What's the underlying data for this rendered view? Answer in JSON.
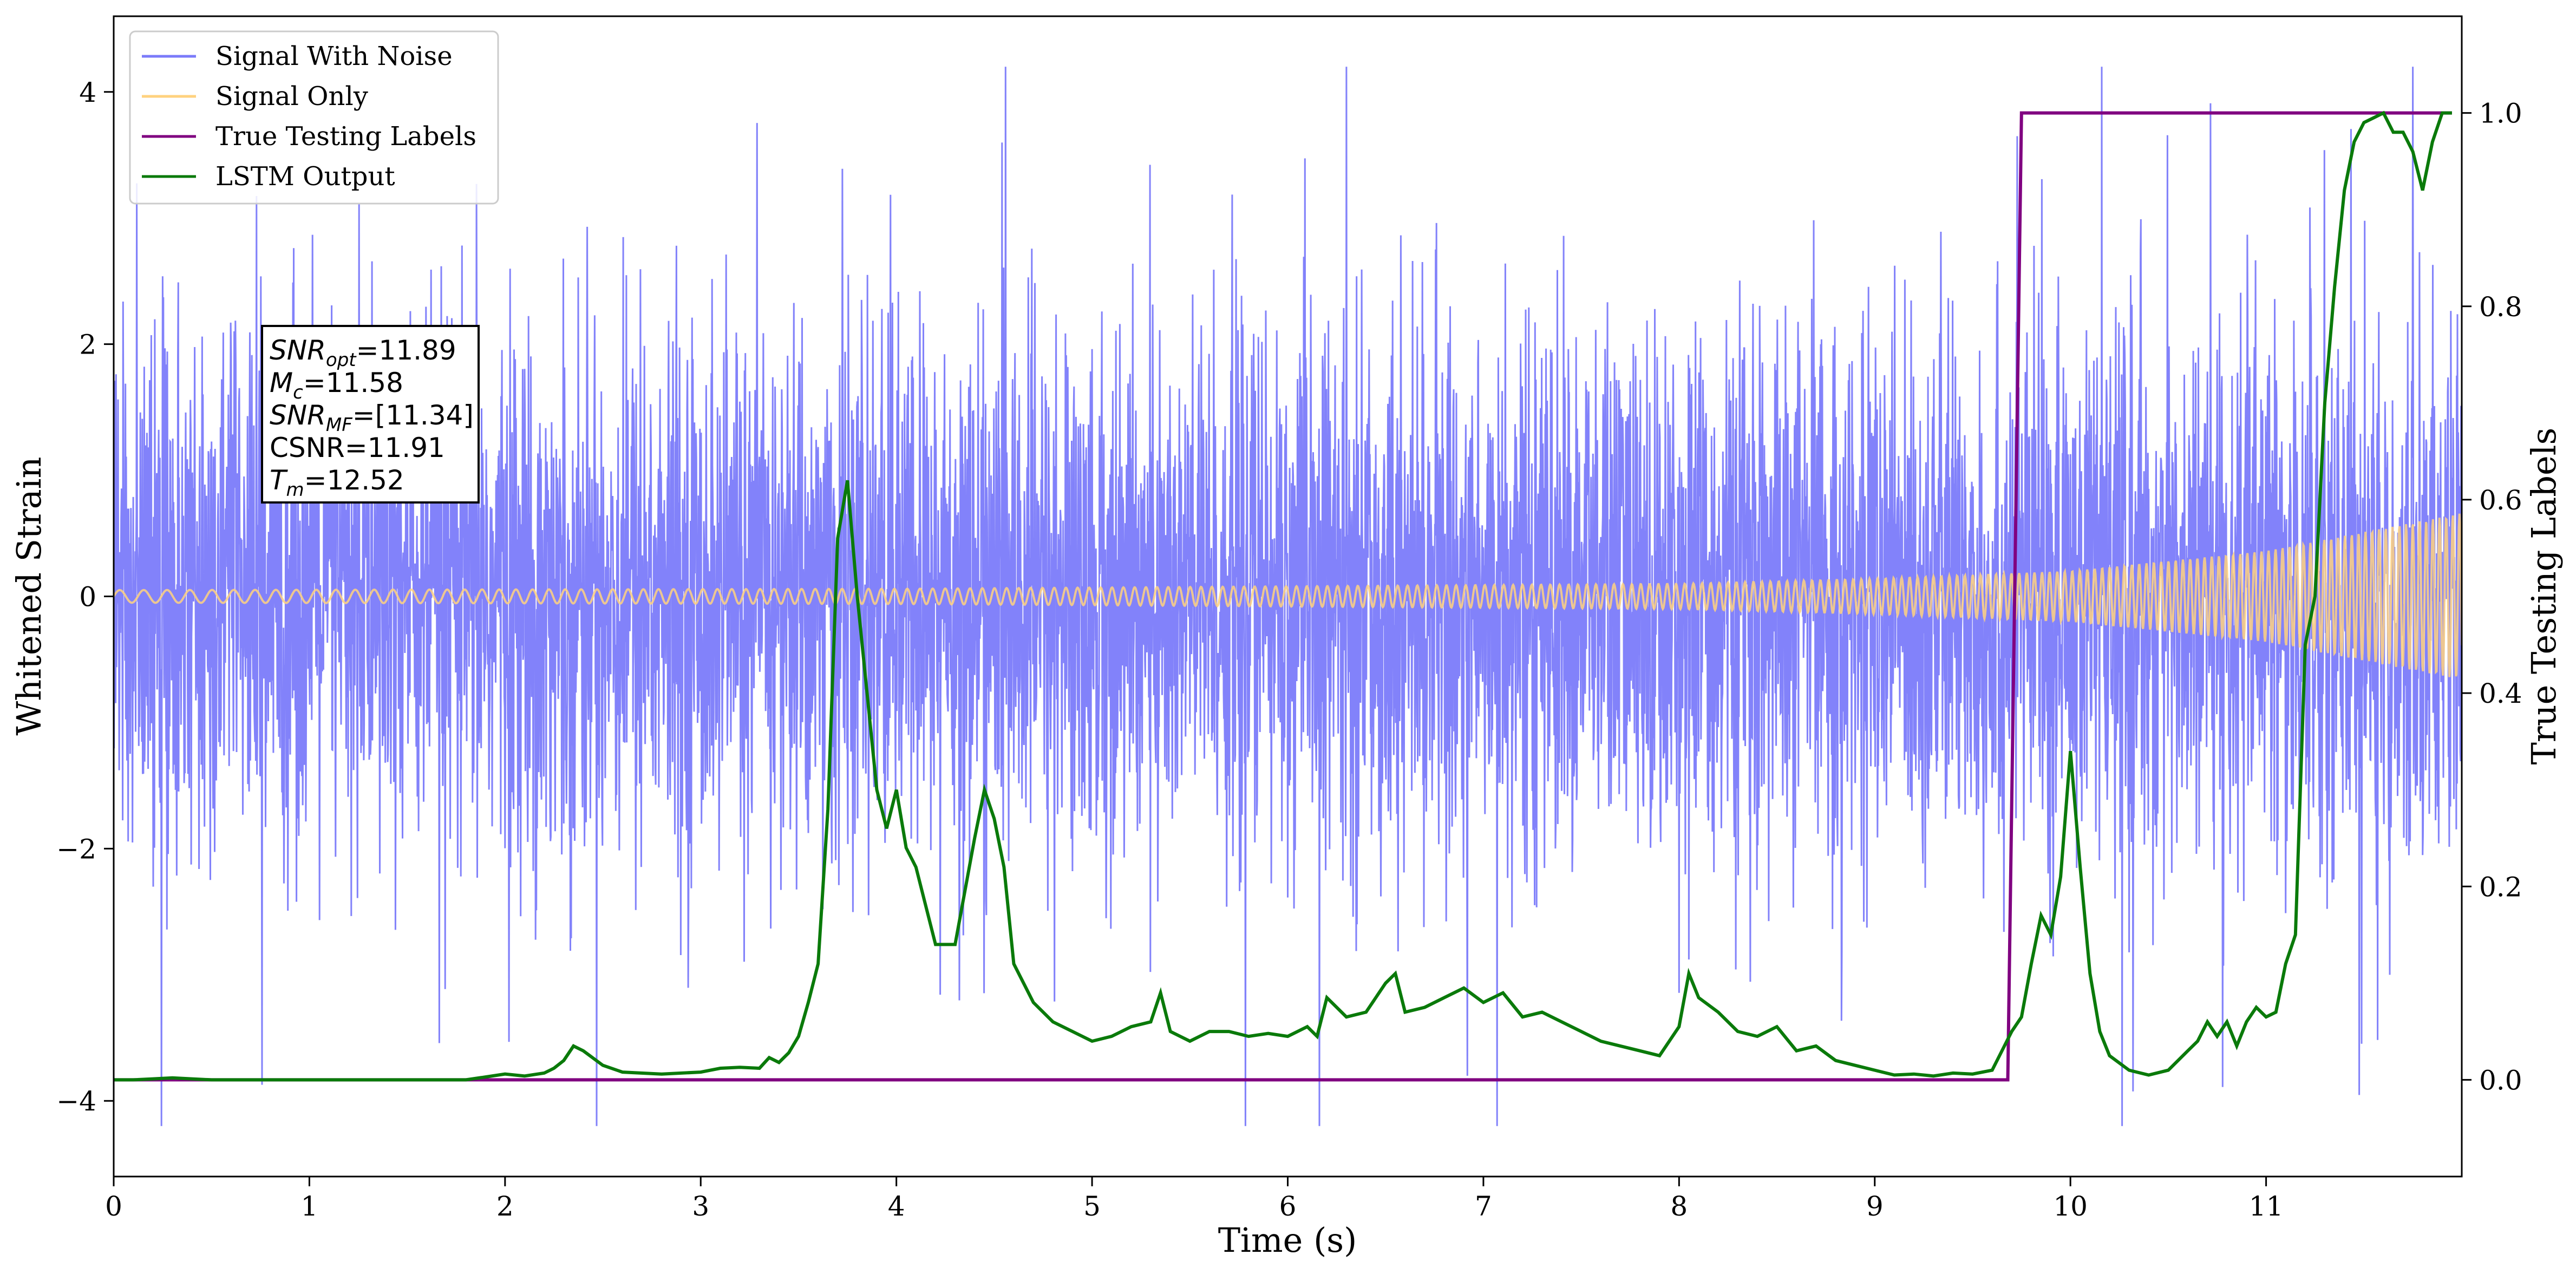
{
  "chart_data": {
    "type": "line",
    "title": "",
    "xlabel": "Time (s)",
    "ylabel": "Whitened Strain",
    "ylabel_right": "True Testing Labels",
    "xlim": [
      0,
      12
    ],
    "ylim": [
      -4.6,
      4.6
    ],
    "ylim_right": [
      -0.1,
      1.1
    ],
    "x_ticks": [
      0,
      1,
      2,
      3,
      4,
      5,
      6,
      7,
      8,
      9,
      10,
      11
    ],
    "y_ticks": [
      -4,
      -2,
      0,
      2,
      4
    ],
    "y_ticks_right": [
      0.0,
      0.2,
      0.4,
      0.6,
      0.8,
      1.0
    ],
    "x_tick_labels": [
      "0",
      "1",
      "2",
      "3",
      "4",
      "5",
      "6",
      "7",
      "8",
      "9",
      "10",
      "11"
    ],
    "y_tick_labels": [
      "−4",
      "−2",
      "0",
      "2",
      "4"
    ],
    "y_tick_labels_right": [
      "0.0",
      "0.2",
      "0.4",
      "0.6",
      "0.8",
      "1.0"
    ],
    "grid": false,
    "legend_position": "top-left",
    "colors": {
      "signal_with_noise": "#7b7bfa",
      "signal_only": "#ffd27f",
      "true_labels": "#800080",
      "lstm_output": "#0a7a0a"
    },
    "series": [
      {
        "name": "Signal With Noise",
        "axis": "left",
        "description_values": "dense noise, roughly within [-4.2, 4.2], centered at 0, spanning x 0 to 12"
      },
      {
        "name": "Signal Only",
        "axis": "left",
        "amplitude_points": [
          [
            0,
            0.05
          ],
          [
            4,
            0.06
          ],
          [
            8,
            0.1
          ],
          [
            9,
            0.14
          ],
          [
            10,
            0.2
          ],
          [
            11,
            0.36
          ],
          [
            12,
            0.66
          ]
        ]
      },
      {
        "name": "True Testing Labels",
        "axis": "right",
        "x": [
          0,
          9.68,
          9.75,
          11.95
        ],
        "y": [
          0,
          0,
          1,
          1
        ]
      },
      {
        "name": "LSTM Output",
        "axis": "right",
        "x": [
          0,
          0.1,
          0.2,
          0.3,
          0.4,
          0.5,
          1.0,
          1.5,
          1.8,
          1.9,
          2.0,
          2.1,
          2.2,
          2.25,
          2.3,
          2.35,
          2.4,
          2.5,
          2.6,
          2.8,
          3.0,
          3.1,
          3.2,
          3.3,
          3.35,
          3.4,
          3.45,
          3.5,
          3.55,
          3.6,
          3.65,
          3.7,
          3.75,
          3.8,
          3.85,
          3.9,
          3.95,
          4.0,
          4.05,
          4.1,
          4.15,
          4.2,
          4.3,
          4.4,
          4.45,
          4.5,
          4.55,
          4.6,
          4.7,
          4.8,
          4.9,
          5.0,
          5.1,
          5.2,
          5.3,
          5.35,
          5.4,
          5.5,
          5.6,
          5.7,
          5.8,
          5.9,
          6.0,
          6.1,
          6.15,
          6.2,
          6.3,
          6.4,
          6.5,
          6.55,
          6.6,
          6.7,
          6.8,
          6.9,
          7.0,
          7.1,
          7.2,
          7.3,
          7.4,
          7.5,
          7.6,
          7.7,
          7.8,
          7.9,
          8.0,
          8.05,
          8.1,
          8.2,
          8.3,
          8.4,
          8.5,
          8.6,
          8.7,
          8.8,
          9.0,
          9.1,
          9.2,
          9.3,
          9.4,
          9.5,
          9.6,
          9.65,
          9.7,
          9.75,
          9.8,
          9.85,
          9.9,
          9.95,
          10.0,
          10.05,
          10.1,
          10.15,
          10.2,
          10.3,
          10.4,
          10.5,
          10.6,
          10.65,
          10.7,
          10.75,
          10.8,
          10.85,
          10.9,
          10.95,
          11.0,
          11.05,
          11.1,
          11.15,
          11.2,
          11.25,
          11.3,
          11.35,
          11.4,
          11.45,
          11.5,
          11.55,
          11.6,
          11.65,
          11.7,
          11.75,
          11.8,
          11.85,
          11.9,
          11.95
        ],
        "y": [
          0.0,
          0.0,
          0.001,
          0.002,
          0.001,
          0.0,
          0.0,
          0.0,
          0.0,
          0.003,
          0.006,
          0.004,
          0.007,
          0.012,
          0.02,
          0.035,
          0.03,
          0.015,
          0.008,
          0.006,
          0.008,
          0.012,
          0.013,
          0.012,
          0.023,
          0.018,
          0.028,
          0.045,
          0.08,
          0.12,
          0.28,
          0.56,
          0.62,
          0.5,
          0.4,
          0.3,
          0.26,
          0.3,
          0.24,
          0.22,
          0.18,
          0.14,
          0.14,
          0.25,
          0.3,
          0.27,
          0.22,
          0.12,
          0.08,
          0.06,
          0.05,
          0.04,
          0.045,
          0.055,
          0.06,
          0.09,
          0.05,
          0.04,
          0.05,
          0.05,
          0.045,
          0.048,
          0.045,
          0.055,
          0.045,
          0.085,
          0.065,
          0.07,
          0.1,
          0.11,
          0.07,
          0.075,
          0.085,
          0.095,
          0.08,
          0.09,
          0.065,
          0.07,
          0.06,
          0.05,
          0.04,
          0.035,
          0.03,
          0.025,
          0.055,
          0.11,
          0.085,
          0.07,
          0.05,
          0.045,
          0.055,
          0.03,
          0.035,
          0.02,
          0.01,
          0.005,
          0.006,
          0.004,
          0.007,
          0.006,
          0.01,
          0.03,
          0.05,
          0.065,
          0.12,
          0.17,
          0.15,
          0.21,
          0.34,
          0.22,
          0.11,
          0.05,
          0.025,
          0.01,
          0.005,
          0.01,
          0.03,
          0.04,
          0.06,
          0.045,
          0.06,
          0.035,
          0.06,
          0.075,
          0.065,
          0.07,
          0.12,
          0.15,
          0.45,
          0.5,
          0.7,
          0.82,
          0.92,
          0.97,
          0.99,
          0.995,
          1.0,
          0.98,
          0.98,
          0.96,
          0.92,
          0.97,
          1.0,
          1.0
        ]
      }
    ]
  },
  "legend": {
    "items": [
      {
        "label": "Signal With Noise"
      },
      {
        "label": "Signal Only"
      },
      {
        "label": "True Testing Labels"
      },
      {
        "label": "LSTM Output"
      }
    ]
  },
  "annotation": {
    "lines": [
      {
        "var": "SNR",
        "sub": "opt",
        "value": "=11.89"
      },
      {
        "var": "M",
        "sub": "c",
        "value": "=11.58"
      },
      {
        "var": "SNR",
        "sub": "MF",
        "value": "=[11.34]"
      },
      {
        "var": "",
        "sub": "",
        "value": "CSNR=11.91"
      },
      {
        "var": "T",
        "sub": "m",
        "value": "=12.52"
      }
    ]
  }
}
